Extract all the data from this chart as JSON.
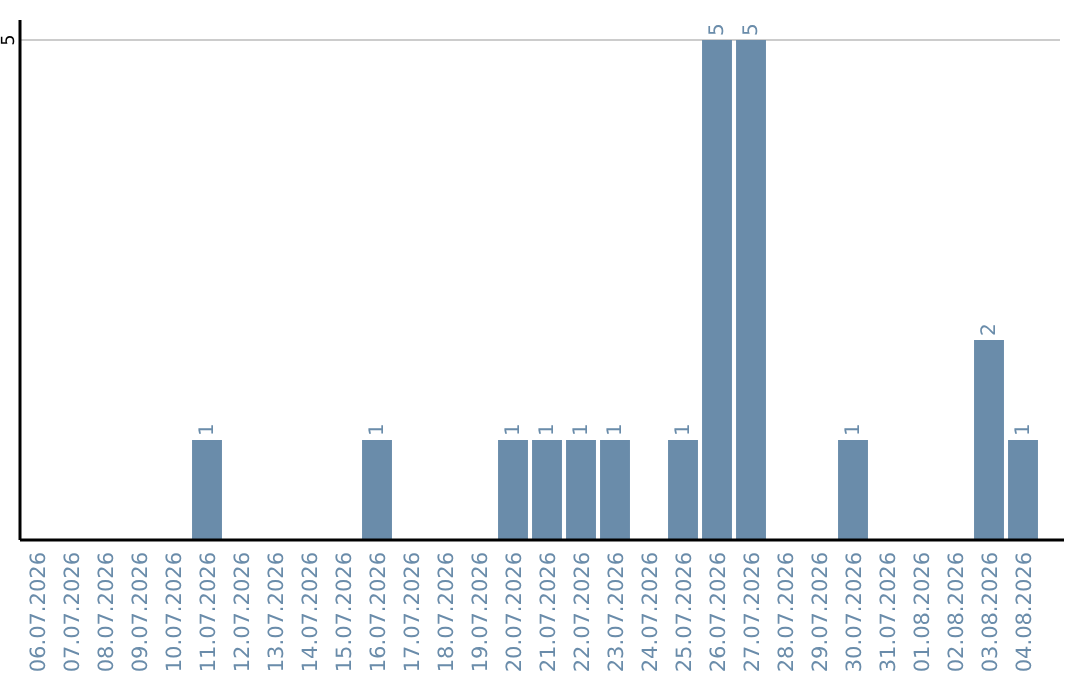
{
  "chart_data": {
    "type": "bar",
    "categories": [
      "06.07.2026",
      "07.07.2026",
      "08.07.2026",
      "09.07.2026",
      "10.07.2026",
      "11.07.2026",
      "12.07.2026",
      "13.07.2026",
      "14.07.2026",
      "15.07.2026",
      "16.07.2026",
      "17.07.2026",
      "18.07.2026",
      "19.07.2026",
      "20.07.2026",
      "21.07.2026",
      "22.07.2026",
      "23.07.2026",
      "24.07.2026",
      "25.07.2026",
      "26.07.2026",
      "27.07.2026",
      "28.07.2026",
      "29.07.2026",
      "30.07.2026",
      "31.07.2026",
      "01.08.2026",
      "02.08.2026",
      "03.08.2026",
      "04.08.2026"
    ],
    "values": [
      0,
      0,
      0,
      0,
      0,
      1,
      0,
      0,
      0,
      0,
      1,
      0,
      0,
      0,
      1,
      1,
      1,
      1,
      0,
      1,
      5,
      5,
      0,
      0,
      1,
      0,
      0,
      0,
      2,
      1
    ],
    "value_labels": [
      null,
      null,
      null,
      null,
      null,
      "1",
      null,
      null,
      null,
      null,
      "1",
      null,
      null,
      null,
      "1",
      "1",
      "1",
      "1",
      null,
      "1",
      "5",
      "5",
      null,
      null,
      "1",
      null,
      null,
      null,
      "2",
      "1"
    ],
    "color": "#6a8caa",
    "ylim": [
      0,
      5.2
    ],
    "yticks": [
      5
    ],
    "grid": "y"
  }
}
